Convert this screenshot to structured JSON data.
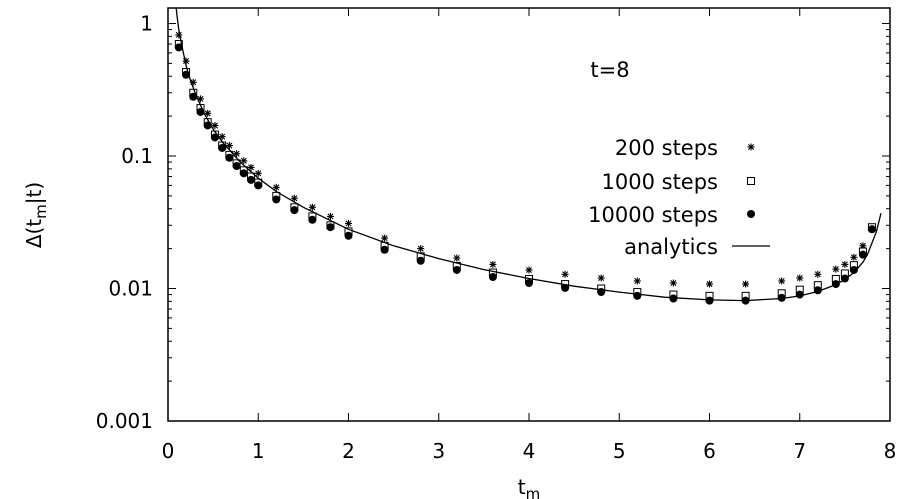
{
  "chart_data": {
    "type": "scatter",
    "title": "",
    "annotation": "t=8",
    "xlabel": "t",
    "xlabel_sub": "m",
    "ylabel_prefix": "Δ(t",
    "ylabel_sub": "m",
    "ylabel_suffix": "|t)",
    "xlim": [
      0,
      8
    ],
    "ylim": [
      0.001,
      2
    ],
    "yscale": "log",
    "xticks": [
      0,
      1,
      2,
      3,
      4,
      5,
      6,
      7,
      8
    ],
    "xtick_labels": [
      "0",
      "1",
      "2",
      "3",
      "4",
      "5",
      "6",
      "7",
      "8"
    ],
    "yticks": [
      0.001,
      0.01,
      0.1,
      1
    ],
    "ytick_labels": [
      "0.001",
      "0.01",
      "0.1",
      "1"
    ],
    "grid": false,
    "legend_position": "top-right",
    "series": [
      {
        "name": "200 steps",
        "marker": "star",
        "x": [
          0.12,
          0.2,
          0.28,
          0.36,
          0.44,
          0.52,
          0.6,
          0.68,
          0.76,
          0.84,
          0.92,
          1.0,
          1.2,
          1.4,
          1.6,
          1.8,
          2.0,
          2.4,
          2.8,
          3.2,
          3.6,
          4.0,
          4.4,
          4.8,
          5.2,
          5.6,
          6.0,
          6.4,
          6.8,
          7.0,
          7.2,
          7.4,
          7.5,
          7.6,
          7.7,
          7.8
        ],
        "y": [
          0.82,
          0.52,
          0.36,
          0.27,
          0.21,
          0.17,
          0.14,
          0.12,
          0.104,
          0.092,
          0.082,
          0.074,
          0.058,
          0.048,
          0.041,
          0.035,
          0.031,
          0.024,
          0.02,
          0.017,
          0.0152,
          0.0138,
          0.0128,
          0.012,
          0.0114,
          0.011,
          0.0108,
          0.0108,
          0.0114,
          0.012,
          0.0128,
          0.014,
          0.0152,
          0.0172,
          0.021,
          0.029
        ]
      },
      {
        "name": "1000 steps",
        "marker": "square",
        "x": [
          0.12,
          0.2,
          0.28,
          0.36,
          0.44,
          0.52,
          0.6,
          0.68,
          0.76,
          0.84,
          0.92,
          1.0,
          1.2,
          1.4,
          1.6,
          1.8,
          2.0,
          2.4,
          2.8,
          3.2,
          3.6,
          4.0,
          4.4,
          4.8,
          5.2,
          5.6,
          6.0,
          6.4,
          6.8,
          7.0,
          7.2,
          7.4,
          7.5,
          7.6,
          7.7,
          7.8
        ],
        "y": [
          0.7,
          0.43,
          0.3,
          0.23,
          0.18,
          0.145,
          0.12,
          0.102,
          0.088,
          0.078,
          0.07,
          0.063,
          0.05,
          0.041,
          0.035,
          0.03,
          0.027,
          0.021,
          0.0175,
          0.0148,
          0.0132,
          0.0118,
          0.0108,
          0.01,
          0.0094,
          0.009,
          0.0088,
          0.0088,
          0.0092,
          0.0098,
          0.0106,
          0.0118,
          0.013,
          0.015,
          0.019,
          0.029
        ]
      },
      {
        "name": "10000 steps",
        "marker": "circle",
        "x": [
          0.12,
          0.2,
          0.28,
          0.36,
          0.44,
          0.52,
          0.6,
          0.68,
          0.76,
          0.84,
          0.92,
          1.0,
          1.2,
          1.4,
          1.6,
          1.8,
          2.0,
          2.4,
          2.8,
          3.2,
          3.6,
          4.0,
          4.4,
          4.8,
          5.2,
          5.6,
          6.0,
          6.4,
          6.8,
          7.0,
          7.2,
          7.4,
          7.5,
          7.6,
          7.7,
          7.8
        ],
        "y": [
          0.66,
          0.41,
          0.28,
          0.215,
          0.17,
          0.138,
          0.115,
          0.097,
          0.084,
          0.074,
          0.066,
          0.06,
          0.047,
          0.039,
          0.033,
          0.029,
          0.025,
          0.0196,
          0.0162,
          0.0138,
          0.0122,
          0.011,
          0.0101,
          0.0094,
          0.0088,
          0.0084,
          0.0081,
          0.0081,
          0.0085,
          0.009,
          0.0097,
          0.0108,
          0.0119,
          0.0138,
          0.018,
          0.028
        ]
      },
      {
        "name": "analytics",
        "marker": "line",
        "x": [
          0.06,
          0.08,
          0.1,
          0.12,
          0.15,
          0.2,
          0.25,
          0.3,
          0.4,
          0.5,
          0.6,
          0.8,
          1.0,
          1.2,
          1.5,
          2.0,
          2.5,
          3.0,
          3.5,
          4.0,
          4.5,
          5.0,
          5.5,
          6.0,
          6.4,
          6.8,
          7.0,
          7.2,
          7.4,
          7.5,
          7.6,
          7.7,
          7.75,
          7.8,
          7.85,
          7.9
        ],
        "y": [
          2.0,
          1.55,
          1.15,
          0.9,
          0.7,
          0.48,
          0.37,
          0.3,
          0.21,
          0.16,
          0.128,
          0.09,
          0.068,
          0.054,
          0.041,
          0.028,
          0.021,
          0.0168,
          0.0139,
          0.0119,
          0.0104,
          0.0094,
          0.0086,
          0.0082,
          0.0081,
          0.0084,
          0.0088,
          0.0095,
          0.0107,
          0.0117,
          0.0132,
          0.0158,
          0.018,
          0.022,
          0.027,
          0.037
        ]
      }
    ]
  }
}
